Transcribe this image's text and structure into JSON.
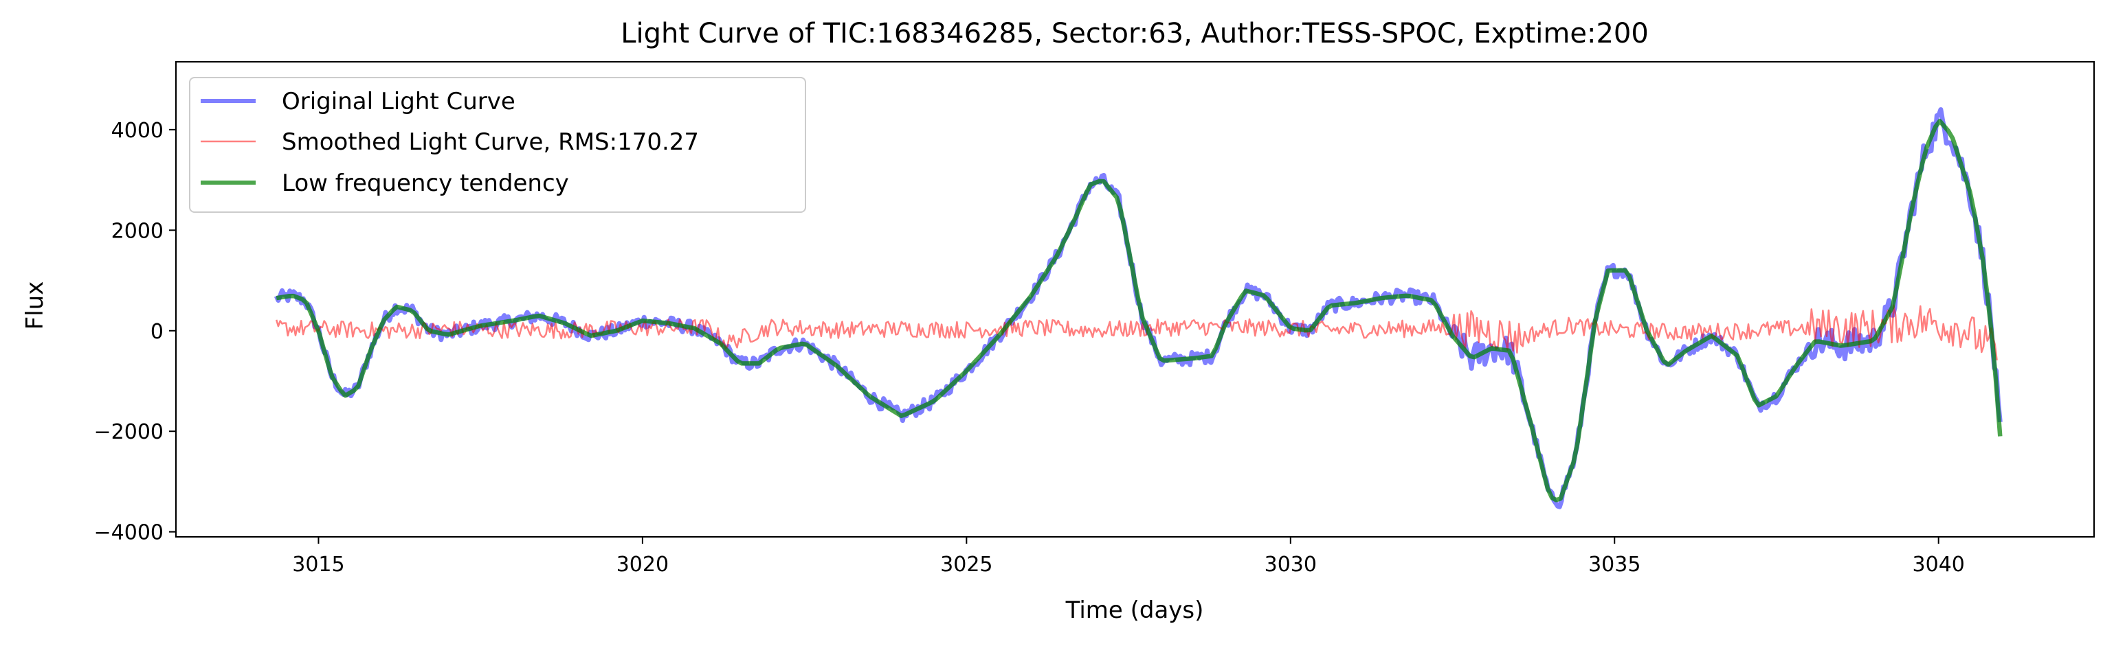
{
  "chart_data": {
    "type": "line",
    "title": "Light Curve of TIC:168346285, Sector:63, Author:TESS-SPOC, Exptime:200",
    "xlabel": "Time (days)",
    "ylabel": "Flux",
    "xlim": [
      3012.8,
      3042.4
    ],
    "ylim": [
      -4100,
      5350
    ],
    "xticks": [
      3015,
      3020,
      3025,
      3030,
      3035,
      3040
    ],
    "yticks": [
      -4000,
      -2000,
      0,
      2000,
      4000
    ],
    "grid": false,
    "legend_position": "top-left",
    "series": [
      {
        "name": "Original Light Curve",
        "color": "#0000ff",
        "opacity": 0.5,
        "x": [
          3014.35,
          3014.6,
          3014.8,
          3015.0,
          3015.2,
          3015.4,
          3015.6,
          3015.8,
          3016.0,
          3016.2,
          3016.45,
          3016.7,
          3017.0,
          3017.5,
          3018.0,
          3018.4,
          3018.8,
          3019.2,
          3019.6,
          3020.0,
          3020.4,
          3020.8,
          3021.2,
          3021.5,
          3021.8,
          3022.1,
          3022.5,
          3023.0,
          3023.5,
          3024.0,
          3024.5,
          3025.0,
          3025.5,
          3026.0,
          3026.4,
          3026.7,
          3026.9,
          3027.1,
          3027.35,
          3027.55,
          3027.7,
          3028.0,
          3028.5,
          3028.8,
          3029.0,
          3029.3,
          3029.6,
          3030.0,
          3030.3,
          3030.6,
          3031.0,
          3031.4,
          3031.8,
          3032.2,
          3032.5,
          3032.8,
          3033.1,
          3033.4,
          3033.7,
          3034.0,
          3034.15,
          3034.4,
          3034.7,
          3034.9,
          3035.2,
          3035.5,
          3035.8,
          3036.1,
          3036.5,
          3036.9,
          3037.2,
          3037.5,
          3037.8,
          3038.1,
          3038.5,
          3039.0,
          3039.3,
          3039.6,
          3039.8,
          3040.0,
          3040.2,
          3040.3,
          3040.5,
          3040.7,
          3040.85,
          3040.95
        ],
        "y": [
          650,
          700,
          600,
          0,
          -900,
          -1300,
          -1150,
          -400,
          200,
          480,
          400,
          0,
          -80,
          100,
          200,
          300,
          150,
          -100,
          0,
          200,
          150,
          50,
          -250,
          -650,
          -650,
          -350,
          -250,
          -700,
          -1300,
          -1700,
          -1400,
          -800,
          -100,
          700,
          1500,
          2300,
          2900,
          3000,
          2600,
          1300,
          300,
          -600,
          -550,
          -500,
          150,
          800,
          700,
          50,
          0,
          500,
          550,
          650,
          700,
          600,
          -100,
          -550,
          -350,
          -400,
          -1800,
          -3300,
          -3400,
          -2500,
          200,
          1200,
          1200,
          0,
          -700,
          -400,
          -100,
          -500,
          -1500,
          -1300,
          -700,
          -200,
          -300,
          -200,
          500,
          2500,
          3600,
          4200,
          3900,
          3500,
          2700,
          1300,
          -400,
          -2100
        ]
      },
      {
        "name": "Smoothed Light Curve, RMS:170.27",
        "color": "#ff0000",
        "opacity": 0.5,
        "x": [
          3014.35,
          3015.0,
          3016.0,
          3017.0,
          3018.0,
          3019.0,
          3020.0,
          3021.0,
          3021.3,
          3022.0,
          3023.0,
          3024.0,
          3025.0,
          3026.0,
          3027.0,
          3027.6,
          3028.5,
          3029.5,
          3030.5,
          3031.5,
          3032.3,
          3033.0,
          3033.5,
          3034.0,
          3034.3,
          3035.0,
          3036.0,
          3037.0,
          3038.0,
          3039.0,
          3039.6,
          3040.0,
          3040.4,
          3040.9
        ],
        "y": [
          60,
          40,
          0,
          30,
          20,
          10,
          60,
          70,
          -250,
          80,
          20,
          40,
          20,
          60,
          10,
          40,
          80,
          60,
          20,
          30,
          60,
          20,
          -150,
          40,
          100,
          20,
          -30,
          0,
          60,
          50,
          200,
          150,
          30,
          -400
        ]
      },
      {
        "name": "Low frequency tendency",
        "color": "#008000",
        "opacity": 0.7,
        "x": [
          3014.35,
          3014.6,
          3014.8,
          3015.0,
          3015.2,
          3015.4,
          3015.6,
          3015.8,
          3016.0,
          3016.2,
          3016.45,
          3016.7,
          3017.0,
          3017.5,
          3018.0,
          3018.4,
          3018.8,
          3019.2,
          3019.6,
          3020.0,
          3020.4,
          3020.8,
          3021.2,
          3021.5,
          3021.8,
          3022.1,
          3022.5,
          3023.0,
          3023.5,
          3024.0,
          3024.5,
          3025.0,
          3025.5,
          3026.0,
          3026.4,
          3026.7,
          3026.9,
          3027.1,
          3027.35,
          3027.55,
          3027.7,
          3028.0,
          3028.5,
          3028.8,
          3029.0,
          3029.3,
          3029.6,
          3030.0,
          3030.3,
          3030.6,
          3031.0,
          3031.4,
          3031.8,
          3032.2,
          3032.5,
          3032.8,
          3033.1,
          3033.4,
          3033.7,
          3034.0,
          3034.15,
          3034.4,
          3034.7,
          3034.9,
          3035.2,
          3035.5,
          3035.8,
          3036.1,
          3036.5,
          3036.9,
          3037.2,
          3037.5,
          3037.8,
          3038.1,
          3038.5,
          3039.0,
          3039.3,
          3039.6,
          3039.8,
          3040.0,
          3040.2,
          3040.3,
          3040.5,
          3040.7,
          3040.85,
          3040.95
        ],
        "y": [
          650,
          700,
          600,
          0,
          -900,
          -1300,
          -1150,
          -400,
          200,
          480,
          400,
          0,
          -80,
          100,
          200,
          300,
          150,
          -100,
          0,
          200,
          150,
          50,
          -250,
          -650,
          -650,
          -350,
          -250,
          -700,
          -1300,
          -1700,
          -1400,
          -800,
          -100,
          700,
          1500,
          2300,
          2900,
          3000,
          2600,
          1300,
          300,
          -600,
          -550,
          -500,
          150,
          800,
          700,
          50,
          0,
          500,
          550,
          650,
          700,
          600,
          -100,
          -550,
          -350,
          -400,
          -1800,
          -3300,
          -3400,
          -2500,
          200,
          1200,
          1200,
          0,
          -700,
          -400,
          -100,
          -500,
          -1500,
          -1300,
          -700,
          -200,
          -300,
          -200,
          500,
          2500,
          3600,
          4200,
          3900,
          3500,
          2700,
          1300,
          -400,
          -2100
        ]
      }
    ]
  }
}
